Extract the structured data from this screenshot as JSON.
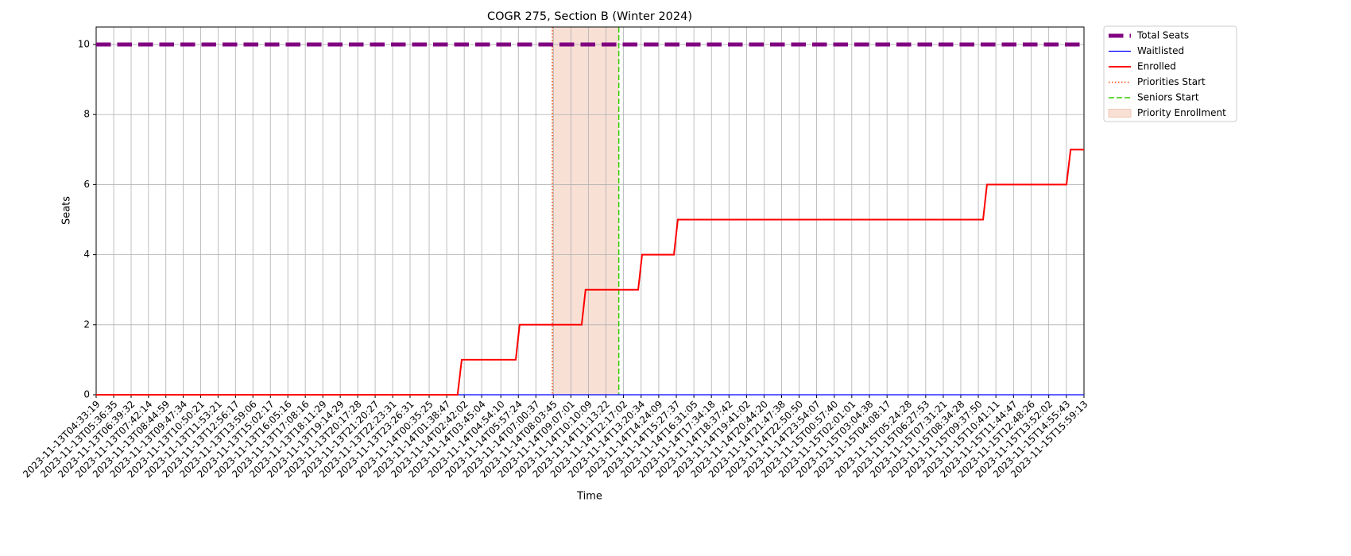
{
  "chart_data": {
    "type": "line",
    "title": "COGR 275, Section B (Winter 2024)",
    "x_label": "Time",
    "y_label": "Seats",
    "x_scale": "time",
    "xlim": [
      "2023-11-13T04:33:19",
      "2023-11-15T15:59:13"
    ],
    "xticks": [
      "2023-11-13T04:33:19",
      "2023-11-13T05:36:35",
      "2023-11-13T06:39:32",
      "2023-11-13T07:42:14",
      "2023-11-13T08:44:59",
      "2023-11-13T09:47:34",
      "2023-11-13T10:50:21",
      "2023-11-13T11:53:21",
      "2023-11-13T12:56:17",
      "2023-11-13T13:59:06",
      "2023-11-13T15:02:17",
      "2023-11-13T16:05:16",
      "2023-11-13T17:08:16",
      "2023-11-13T18:11:29",
      "2023-11-13T19:14:29",
      "2023-11-13T20:17:28",
      "2023-11-13T21:20:27",
      "2023-11-13T22:23:31",
      "2023-11-13T23:26:31",
      "2023-11-14T00:35:25",
      "2023-11-14T01:38:47",
      "2023-11-14T02:42:02",
      "2023-11-14T03:45:04",
      "2023-11-14T04:54:10",
      "2023-11-14T05:57:24",
      "2023-11-14T07:00:37",
      "2023-11-14T08:03:45",
      "2023-11-14T09:07:01",
      "2023-11-14T10:10:09",
      "2023-11-14T11:13:22",
      "2023-11-14T12:17:02",
      "2023-11-14T13:20:34",
      "2023-11-14T14:24:09",
      "2023-11-14T15:27:37",
      "2023-11-14T16:31:05",
      "2023-11-14T17:34:18",
      "2023-11-14T18:37:42",
      "2023-11-14T19:41:02",
      "2023-11-14T20:44:20",
      "2023-11-14T21:47:38",
      "2023-11-14T22:50:50",
      "2023-11-14T23:54:07",
      "2023-11-15T00:57:40",
      "2023-11-15T02:01:01",
      "2023-11-15T03:04:38",
      "2023-11-15T04:08:17",
      "2023-11-15T05:24:28",
      "2023-11-15T06:27:53",
      "2023-11-15T07:31:21",
      "2023-11-15T08:34:28",
      "2023-11-15T09:37:50",
      "2023-11-15T10:41:11",
      "2023-11-15T11:44:47",
      "2023-11-15T12:48:26",
      "2023-11-15T13:52:02",
      "2023-11-15T14:55:43",
      "2023-11-15T15:59:13"
    ],
    "ylim": [
      0,
      10.5
    ],
    "yticks": [
      0,
      2,
      4,
      6,
      8,
      10
    ],
    "grid": true,
    "legend": "outside upper right",
    "series": [
      {
        "name": "Total Seats",
        "color": "#800080",
        "linestyle": "dashed",
        "x": [
          "2023-11-13T04:33:19",
          "2023-11-15T15:59:13"
        ],
        "values": [
          10,
          10
        ]
      },
      {
        "name": "Waitlisted",
        "color": "#0000ff",
        "linestyle": "solid",
        "x": [
          "2023-11-13T04:33:19",
          "2023-11-15T15:59:13"
        ],
        "values": [
          0,
          0
        ]
      },
      {
        "name": "Enrolled",
        "color": "#ff0000",
        "linestyle": "solid",
        "x": [
          "2023-11-13T04:33:19",
          "2023-11-14T02:18",
          "2023-11-14T02:33",
          "2023-11-14T05:48",
          "2023-11-14T06:02",
          "2023-11-14T09:46",
          "2023-11-14T10:00",
          "2023-11-14T13:10",
          "2023-11-14T13:24",
          "2023-11-14T15:19",
          "2023-11-14T15:33",
          "2023-11-15T09:55",
          "2023-11-15T10:09",
          "2023-11-15T14:56",
          "2023-11-15T15:11",
          "2023-11-15T15:59:13"
        ],
        "values": [
          0,
          0,
          1,
          1,
          2,
          2,
          3,
          3,
          4,
          4,
          5,
          5,
          6,
          6,
          7,
          7
        ]
      }
    ],
    "vlines": [
      {
        "name": "Priorities Start",
        "color": "#ff4500",
        "linestyle": "dotted",
        "x": "2023-11-14T08:00"
      },
      {
        "name": "Seniors Start",
        "color": "#33cc00",
        "linestyle": "dashed",
        "x": "2023-11-14T12:00"
      }
    ],
    "spans": [
      {
        "name": "Priority Enrollment",
        "color": "#f8e0d5",
        "start": "2023-11-14T08:00",
        "end": "2023-11-14T12:00"
      }
    ]
  }
}
